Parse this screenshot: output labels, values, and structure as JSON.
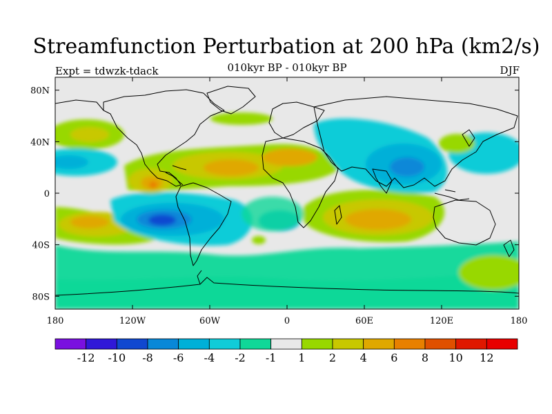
{
  "title": "Streamfunction Perturbation at 200 hPa (km2/s)",
  "left_string": "Expt = tdwzk-tdack",
  "center_string": "010kyr BP - 010kyr BP",
  "right_string": "DJF",
  "map": {
    "lon_range": [
      -180,
      180
    ],
    "lat_range": [
      -90,
      90
    ],
    "lon_ticks": [
      {
        "value": -180,
        "label": "180"
      },
      {
        "value": -120,
        "label": "120W"
      },
      {
        "value": -60,
        "label": "60W"
      },
      {
        "value": 0,
        "label": "0"
      },
      {
        "value": 60,
        "label": "60E"
      },
      {
        "value": 120,
        "label": "120E"
      },
      {
        "value": 180,
        "label": "180"
      }
    ],
    "lat_ticks": [
      {
        "value": 80,
        "label": "80N"
      },
      {
        "value": 40,
        "label": "40N"
      },
      {
        "value": 0,
        "label": "0"
      },
      {
        "value": -40,
        "label": "40S"
      },
      {
        "value": -80,
        "label": "80S"
      }
    ],
    "background_color": "#e8e8e8"
  },
  "colorbar": {
    "labels": [
      "-12",
      "-10",
      "-8",
      "-6",
      "-4",
      "-2",
      "-1",
      "1",
      "2",
      "4",
      "6",
      "8",
      "10",
      "12"
    ],
    "colors": [
      "#7a10e0",
      "#3018d8",
      "#1048d0",
      "#0888d8",
      "#00b0d8",
      "#10ccd8",
      "#10d898",
      "#e8e8e8",
      "#98d800",
      "#c8c800",
      "#e0a800",
      "#e88000",
      "#e05000",
      "#e01800",
      "#e80000"
    ]
  },
  "chart_data": {
    "type": "heatmap",
    "title": "Streamfunction Perturbation at 200 hPa (km2/s)",
    "xlabel": "",
    "ylabel": "",
    "xlim": [
      -180,
      180
    ],
    "ylim": [
      -90,
      90
    ],
    "levels": [
      -12,
      -10,
      -8,
      -6,
      -4,
      -2,
      -1,
      1,
      2,
      4,
      6,
      8,
      10,
      12
    ],
    "features": [
      {
        "lon": -95,
        "lat": -22,
        "value": -8,
        "rx": 40,
        "ry": 18
      },
      {
        "lon": 95,
        "lat": 22,
        "value": -4,
        "rx": 45,
        "ry": 22
      },
      {
        "lon": -40,
        "lat": 20,
        "value": 4,
        "rx": 55,
        "ry": 14
      },
      {
        "lon": 5,
        "lat": 28,
        "value": 4,
        "rx": 35,
        "ry": 12
      },
      {
        "lon": 75,
        "lat": -22,
        "value": 4,
        "rx": 50,
        "ry": 18
      },
      {
        "lon": -105,
        "lat": 10,
        "value": 4,
        "rx": 20,
        "ry": 10
      },
      {
        "lon": -155,
        "lat": -22,
        "value": 2,
        "rx": 35,
        "ry": 18
      },
      {
        "lon": -150,
        "lat": 45,
        "value": 2,
        "rx": 25,
        "ry": 12
      },
      {
        "lon": -170,
        "lat": 24,
        "value": -2,
        "rx": 30,
        "ry": 12
      },
      {
        "lon": 150,
        "lat": 30,
        "value": -2,
        "rx": 30,
        "ry": 14
      },
      {
        "lon": -30,
        "lat": -50,
        "value": -2,
        "rx": 120,
        "ry": 14
      },
      {
        "lon": 165,
        "lat": -60,
        "value": 2,
        "rx": 25,
        "ry": 12
      }
    ]
  }
}
